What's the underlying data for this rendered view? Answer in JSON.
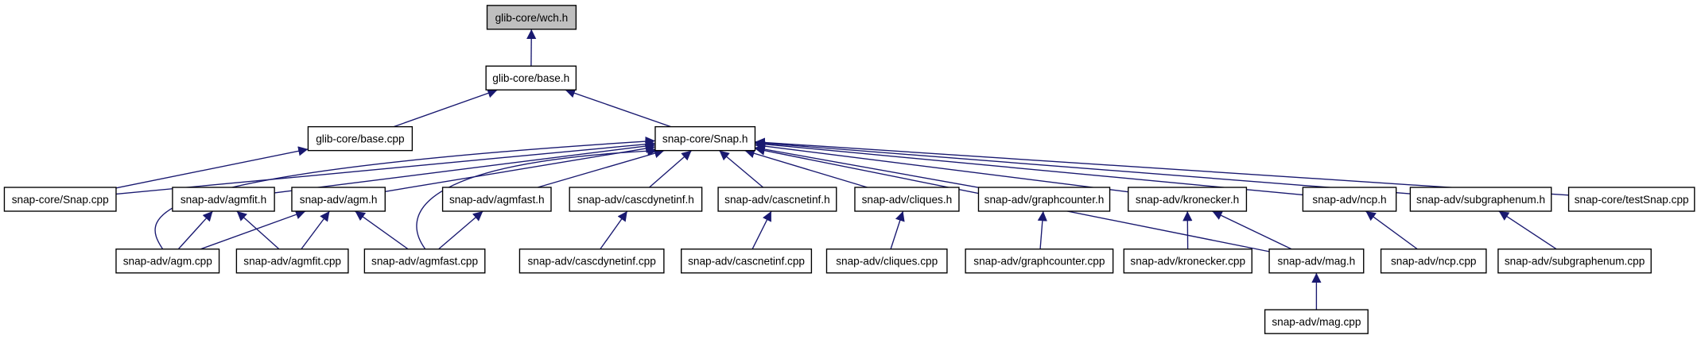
{
  "nodes": [
    {
      "label": "glib-core/wch.h"
    },
    {
      "label": "glib-core/base.h"
    },
    {
      "label": "glib-core/base.cpp"
    },
    {
      "label": "snap-core/Snap.h"
    },
    {
      "label": "snap-core/Snap.cpp"
    },
    {
      "label": "snap-adv/agmfit.h"
    },
    {
      "label": "snap-adv/agm.h"
    },
    {
      "label": "snap-adv/agmfast.h"
    },
    {
      "label": "snap-adv/cascdynetinf.h"
    },
    {
      "label": "snap-adv/cascnetinf.h"
    },
    {
      "label": "snap-adv/cliques.h"
    },
    {
      "label": "snap-adv/graphcounter.h"
    },
    {
      "label": "snap-adv/kronecker.h"
    },
    {
      "label": "snap-adv/ncp.h"
    },
    {
      "label": "snap-adv/subgraphenum.h"
    },
    {
      "label": "snap-core/testSnap.cpp"
    },
    {
      "label": "snap-adv/agm.cpp"
    },
    {
      "label": "snap-adv/agmfit.cpp"
    },
    {
      "label": "snap-adv/agmfast.cpp"
    },
    {
      "label": "snap-adv/cascdynetinf.cpp"
    },
    {
      "label": "snap-adv/cascnetinf.cpp"
    },
    {
      "label": "snap-adv/cliques.cpp"
    },
    {
      "label": "snap-adv/graphcounter.cpp"
    },
    {
      "label": "snap-adv/kronecker.cpp"
    },
    {
      "label": "snap-adv/mag.h"
    },
    {
      "label": "snap-adv/ncp.cpp"
    },
    {
      "label": "snap-adv/subgraphenum.cpp"
    },
    {
      "label": "snap-adv/mag.cpp"
    }
  ]
}
